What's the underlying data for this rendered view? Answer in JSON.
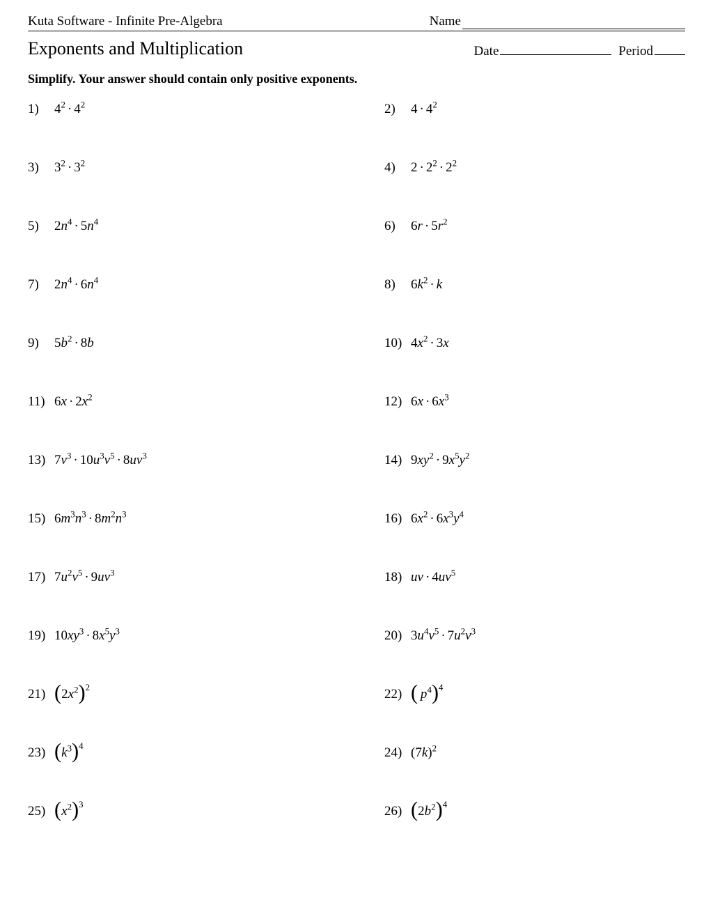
{
  "header": {
    "source": "Kuta Software - Infinite Pre-Algebra",
    "name_label": "Name",
    "title": "Exponents and Multiplication",
    "date_label": "Date",
    "period_label": "Period"
  },
  "instructions": "Simplify.  Your answer should contain only positive exponents.",
  "problems": [
    {
      "n": "1)",
      "expr": "<span class='rm'>4</span><sup>2</sup><span class='dot'>·</span><span class='rm'>4</span><sup>2</sup>"
    },
    {
      "n": "2)",
      "expr": "<span class='rm'>4</span><span class='dot'>·</span><span class='rm'>4</span><sup>2</sup>"
    },
    {
      "n": "3)",
      "expr": "<span class='rm'>3</span><sup>2</sup><span class='dot'>·</span><span class='rm'>3</span><sup>2</sup>"
    },
    {
      "n": "4)",
      "expr": "<span class='rm'>2</span><span class='dot'>·</span><span class='rm'>2</span><sup>2</sup><span class='dot'>·</span><span class='rm'>2</span><sup>2</sup>"
    },
    {
      "n": "5)",
      "expr": "<span class='rm'>2</span>n<sup>4</sup><span class='dot'>·</span><span class='rm'>5</span>n<sup>4</sup>"
    },
    {
      "n": "6)",
      "expr": "<span class='rm'>6</span>r<span class='dot'>·</span><span class='rm'>5</span>r<sup>2</sup>"
    },
    {
      "n": "7)",
      "expr": "<span class='rm'>2</span>n<sup>4</sup><span class='dot'>·</span><span class='rm'>6</span>n<sup>4</sup>"
    },
    {
      "n": "8)",
      "expr": "<span class='rm'>6</span>k<sup>2</sup><span class='dot'>·</span>k"
    },
    {
      "n": "9)",
      "expr": "<span class='rm'>5</span>b<sup>2</sup><span class='dot'>·</span><span class='rm'>8</span>b"
    },
    {
      "n": "10)",
      "expr": "<span class='rm'>4</span>x<sup>2</sup><span class='dot'>·</span><span class='rm'>3</span>x"
    },
    {
      "n": "11)",
      "expr": "<span class='rm'>6</span>x<span class='dot'>·</span><span class='rm'>2</span>x<sup>2</sup>"
    },
    {
      "n": "12)",
      "expr": "<span class='rm'>6</span>x<span class='dot'>·</span><span class='rm'>6</span>x<sup>3</sup>"
    },
    {
      "n": "13)",
      "expr": "<span class='rm'>7</span>v<sup>3</sup><span class='dot'>·</span><span class='rm'>10</span>u<sup>3</sup>v<sup>5</sup><span class='dot'>·</span><span class='rm'>8</span>uv<sup>3</sup>"
    },
    {
      "n": "14)",
      "expr": "<span class='rm'>9</span>xy<sup>2</sup><span class='dot'>·</span><span class='rm'>9</span>x<sup>5</sup>y<sup>2</sup>"
    },
    {
      "n": "15)",
      "expr": "<span class='rm'>6</span>m<sup>3</sup>n<sup>3</sup><span class='dot'>·</span><span class='rm'>8</span>m<sup>2</sup>n<sup>3</sup>"
    },
    {
      "n": "16)",
      "expr": "<span class='rm'>6</span>x<sup>2</sup><span class='dot'>·</span><span class='rm'>6</span>x<sup>3</sup>y<sup>4</sup>"
    },
    {
      "n": "17)",
      "expr": "<span class='rm'>7</span>u<sup>2</sup>v<sup>5</sup><span class='dot'>·</span><span class='rm'>9</span>uv<sup>3</sup>"
    },
    {
      "n": "18)",
      "expr": "uv<span class='dot'>·</span><span class='rm'>4</span>uv<sup>5</sup>"
    },
    {
      "n": "19)",
      "expr": "<span class='rm'>10</span>xy<sup>3</sup><span class='dot'>·</span><span class='rm'>8</span>x<sup>5</sup>y<sup>3</sup>"
    },
    {
      "n": "20)",
      "expr": "<span class='rm'>3</span>u<sup>4</sup>v<sup>5</sup><span class='dot'>·</span><span class='rm'>7</span>u<sup>2</sup>v<sup>3</sup>"
    },
    {
      "n": "21)",
      "expr": "<span class='lparen'>(</span><span class='rm'>2</span>x<sup>2</sup><span class='rparen'>)</span><span class='psup'>2</span>"
    },
    {
      "n": "22)",
      "expr": "<span class='lparen'>(</span>&thinsp;p<sup>4</sup><span class='rparen'>)</span><span class='psup'>4</span>"
    },
    {
      "n": "23)",
      "expr": "<span class='lparen'>(</span>k<sup>3</sup><span class='rparen'>)</span><span class='psup'>4</span>"
    },
    {
      "n": "24)",
      "expr": "<span class='rm'>(7</span>k<span class='rm'>)</span><sup>2</sup>"
    },
    {
      "n": "25)",
      "expr": "<span class='lparen'>(</span>x<sup>2</sup><span class='rparen'>)</span><span class='psup'>3</span>"
    },
    {
      "n": "26)",
      "expr": "<span class='lparen'>(</span><span class='rm'>2</span>b<sup>2</sup><span class='rparen'>)</span><span class='psup'>4</span>"
    }
  ]
}
